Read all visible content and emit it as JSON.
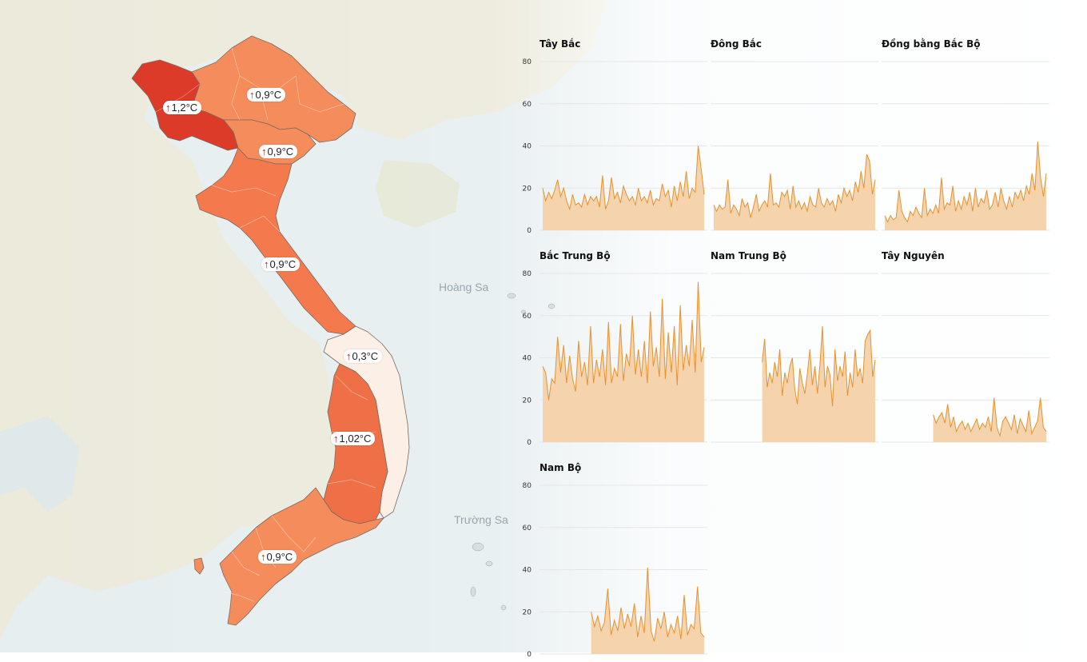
{
  "map": {
    "place_labels": [
      {
        "id": "hoang-sa",
        "text": "Hoàng Sa"
      },
      {
        "id": "truong-sa",
        "text": "Trường Sa"
      }
    ],
    "regions": [
      {
        "id": "tay-bac",
        "name": "Tây Bắc",
        "label": "1,2°C",
        "color": "#dc3b2a"
      },
      {
        "id": "dong-bac",
        "name": "Đông Bắc",
        "label": "0,9°C",
        "color": "#f58c5c"
      },
      {
        "id": "dong-bang-bac-bo",
        "name": "Đồng bằng Bắc Bộ",
        "label": "0,9°C",
        "color": "#f58c5c"
      },
      {
        "id": "bac-trung-bo",
        "name": "Bắc Trung Bộ",
        "label": "0,9°C",
        "color": "#f47a4e"
      },
      {
        "id": "nam-trung-bo",
        "name": "Nam Trung Bộ",
        "label": "0,3°C",
        "color": "#fcefe6"
      },
      {
        "id": "tay-nguyen",
        "name": "Tây Nguyên",
        "label": "1,02°C",
        "color": "#ef7046"
      },
      {
        "id": "nam-bo",
        "name": "Nam Bộ",
        "label": "0,9°C",
        "color": "#f58c5c"
      }
    ],
    "arrow_glyph": "↑",
    "colors": {
      "water": "#e3eef0",
      "land": "#eeecdc",
      "border": "#777777",
      "arrow": "#c0141c"
    }
  },
  "chart_data": [
    {
      "type": "area",
      "title": "Tây Bắc",
      "ylim": [
        0,
        80
      ],
      "yticks": [
        0,
        20,
        40,
        60,
        80
      ],
      "x_start": 0,
      "x_end": 90,
      "values": [
        20,
        14,
        18,
        15,
        19,
        24,
        16,
        20,
        14,
        10,
        17,
        12,
        13,
        11,
        17,
        12,
        16,
        14,
        16,
        11,
        26,
        10,
        14,
        25,
        15,
        18,
        13,
        21,
        17,
        14,
        16,
        12,
        20,
        14,
        16,
        13,
        19,
        12,
        15,
        14,
        22,
        16,
        19,
        11,
        21,
        14,
        23,
        16,
        28,
        15,
        20,
        18,
        40,
        29,
        17
      ]
    },
    {
      "type": "area",
      "title": "Đông Bắc",
      "ylim": [
        0,
        80
      ],
      "yticks": [
        0,
        20,
        40,
        60,
        80
      ],
      "x_start": 0,
      "x_end": 90,
      "values": [
        12,
        9,
        12,
        10,
        11,
        24,
        8,
        12,
        10,
        7,
        15,
        11,
        13,
        6,
        11,
        17,
        9,
        12,
        14,
        11,
        27,
        12,
        13,
        11,
        18,
        16,
        19,
        10,
        21,
        11,
        14,
        10,
        13,
        9,
        16,
        12,
        11,
        20,
        13,
        11,
        15,
        12,
        14,
        9,
        17,
        13,
        20,
        16,
        19,
        14,
        23,
        18,
        28,
        20,
        36,
        33,
        17,
        24
      ]
    },
    {
      "type": "area",
      "title": "Đồng bằng Bắc Bộ",
      "ylim": [
        0,
        80
      ],
      "yticks": [
        0,
        20,
        40,
        60,
        80
      ],
      "x_start": 0,
      "x_end": 90,
      "values": [
        7,
        4,
        7,
        5,
        6,
        19,
        9,
        6,
        4,
        9,
        7,
        11,
        8,
        6,
        20,
        7,
        10,
        8,
        12,
        8,
        25,
        10,
        13,
        12,
        21,
        9,
        14,
        10,
        16,
        12,
        18,
        9,
        20,
        11,
        15,
        13,
        19,
        10,
        12,
        18,
        11,
        20,
        14,
        10,
        16,
        11,
        18,
        15,
        19,
        14,
        21,
        17,
        27,
        19,
        42,
        25,
        16,
        27
      ]
    },
    {
      "type": "area",
      "title": "Bắc Trung Bộ",
      "ylim": [
        0,
        80
      ],
      "yticks": [
        0,
        20,
        40,
        60,
        80
      ],
      "x_start": 0,
      "x_end": 90,
      "values": [
        36,
        33,
        20,
        30,
        28,
        50,
        33,
        46,
        28,
        41,
        30,
        24,
        48,
        31,
        38,
        27,
        55,
        28,
        39,
        31,
        44,
        27,
        57,
        28,
        35,
        31,
        56,
        29,
        42,
        36,
        60,
        32,
        44,
        31,
        48,
        28,
        62,
        36,
        45,
        31,
        68,
        30,
        52,
        33,
        55,
        27,
        65,
        34,
        46,
        36,
        58,
        33,
        76,
        38,
        45
      ]
    },
    {
      "type": "area",
      "title": "Nam Trung Bộ",
      "ylim": [
        0,
        80
      ],
      "yticks": [
        0,
        20,
        40,
        60,
        80
      ],
      "x_start": 27,
      "x_end": 90,
      "values": [
        38,
        49,
        26,
        33,
        28,
        38,
        31,
        44,
        22,
        33,
        28,
        36,
        40,
        25,
        18,
        35,
        28,
        23,
        33,
        44,
        27,
        36,
        23,
        37,
        55,
        26,
        36,
        32,
        17,
        44,
        29,
        36,
        31,
        43,
        22,
        33,
        26,
        44,
        31,
        35,
        28,
        48,
        51,
        53,
        31,
        39
      ]
    },
    {
      "type": "area",
      "title": "Tây Nguyên",
      "ylim": [
        0,
        80
      ],
      "yticks": [
        0,
        20,
        40,
        60,
        80
      ],
      "x_start": 27,
      "x_end": 90,
      "values": [
        13,
        9,
        12,
        14,
        9,
        18,
        7,
        12,
        5,
        8,
        10,
        6,
        9,
        5,
        8,
        11,
        6,
        9,
        7,
        12,
        5,
        21,
        7,
        3,
        10,
        12,
        9,
        6,
        13,
        4,
        11,
        8,
        5,
        15,
        4,
        7,
        10,
        21,
        7,
        5
      ]
    },
    {
      "type": "area",
      "title": "Nam Bộ",
      "ylim": [
        0,
        80
      ],
      "yticks": [
        0,
        20,
        40,
        60,
        80
      ],
      "x_start": 27,
      "x_end": 90,
      "values": [
        20,
        13,
        18,
        11,
        15,
        31,
        9,
        16,
        11,
        22,
        12,
        19,
        13,
        24,
        8,
        18,
        10,
        41,
        11,
        6,
        17,
        12,
        20,
        8,
        14,
        10,
        18,
        7,
        28,
        9,
        14,
        12,
        32,
        10,
        8
      ]
    }
  ]
}
